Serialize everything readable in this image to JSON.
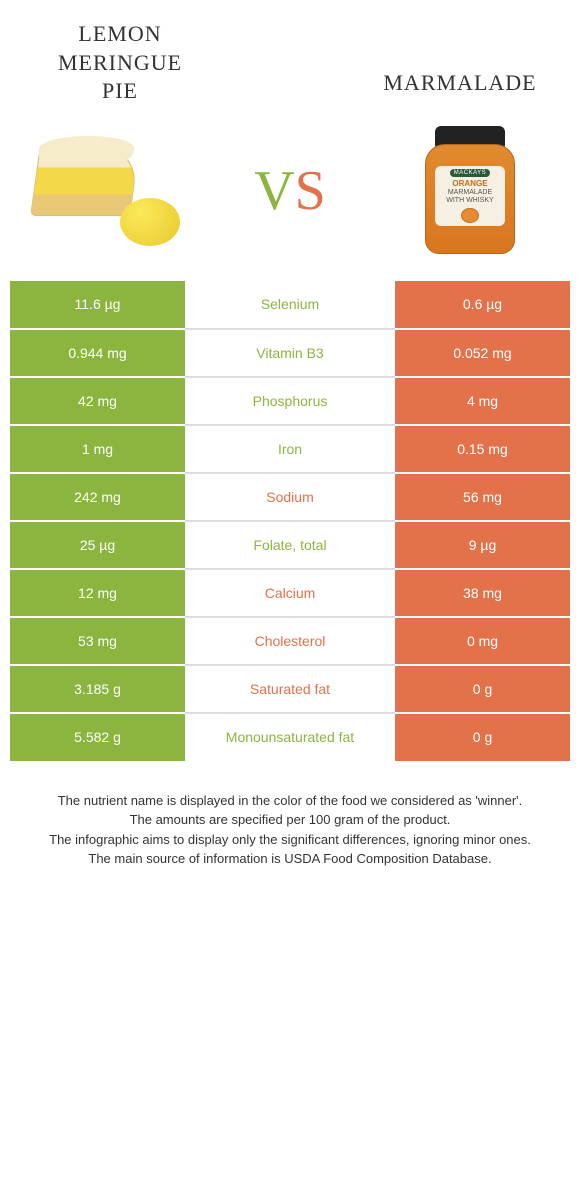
{
  "colors": {
    "left": "#8bb53f",
    "right": "#e3714a",
    "text": "#333333",
    "border": "#dddddd",
    "bg": "#ffffff"
  },
  "foods": {
    "left": {
      "title": "Lemon\nmeringue\npie"
    },
    "right": {
      "title": "Marmalade"
    }
  },
  "vs": {
    "v": "V",
    "s": "S"
  },
  "jar_label": {
    "brand": "MACKAYS",
    "line1": "ORANGE",
    "line2": "MARMALADE",
    "line3": "WITH WHISKY"
  },
  "rows": [
    {
      "left": "11.6 µg",
      "label": "Selenium",
      "right": "0.6 µg",
      "winner": "left"
    },
    {
      "left": "0.944 mg",
      "label": "Vitamin B3",
      "right": "0.052 mg",
      "winner": "left"
    },
    {
      "left": "42 mg",
      "label": "Phosphorus",
      "right": "4 mg",
      "winner": "left"
    },
    {
      "left": "1 mg",
      "label": "Iron",
      "right": "0.15 mg",
      "winner": "left"
    },
    {
      "left": "242 mg",
      "label": "Sodium",
      "right": "56 mg",
      "winner": "right"
    },
    {
      "left": "25 µg",
      "label": "Folate, total",
      "right": "9 µg",
      "winner": "left"
    },
    {
      "left": "12 mg",
      "label": "Calcium",
      "right": "38 mg",
      "winner": "right"
    },
    {
      "left": "53 mg",
      "label": "Cholesterol",
      "right": "0 mg",
      "winner": "right"
    },
    {
      "left": "3.185 g",
      "label": "Saturated fat",
      "right": "0 g",
      "winner": "right"
    },
    {
      "left": "5.582 g",
      "label": "Monounsaturated fat",
      "right": "0 g",
      "winner": "left"
    }
  ],
  "footer": {
    "l1": "The nutrient name is displayed in the color of the food we considered as 'winner'.",
    "l2": "The amounts are specified per 100 gram of the product.",
    "l3": "The infographic aims to display only the significant differences, ignoring minor ones.",
    "l4": "The main source of information is USDA Food Composition Database."
  }
}
